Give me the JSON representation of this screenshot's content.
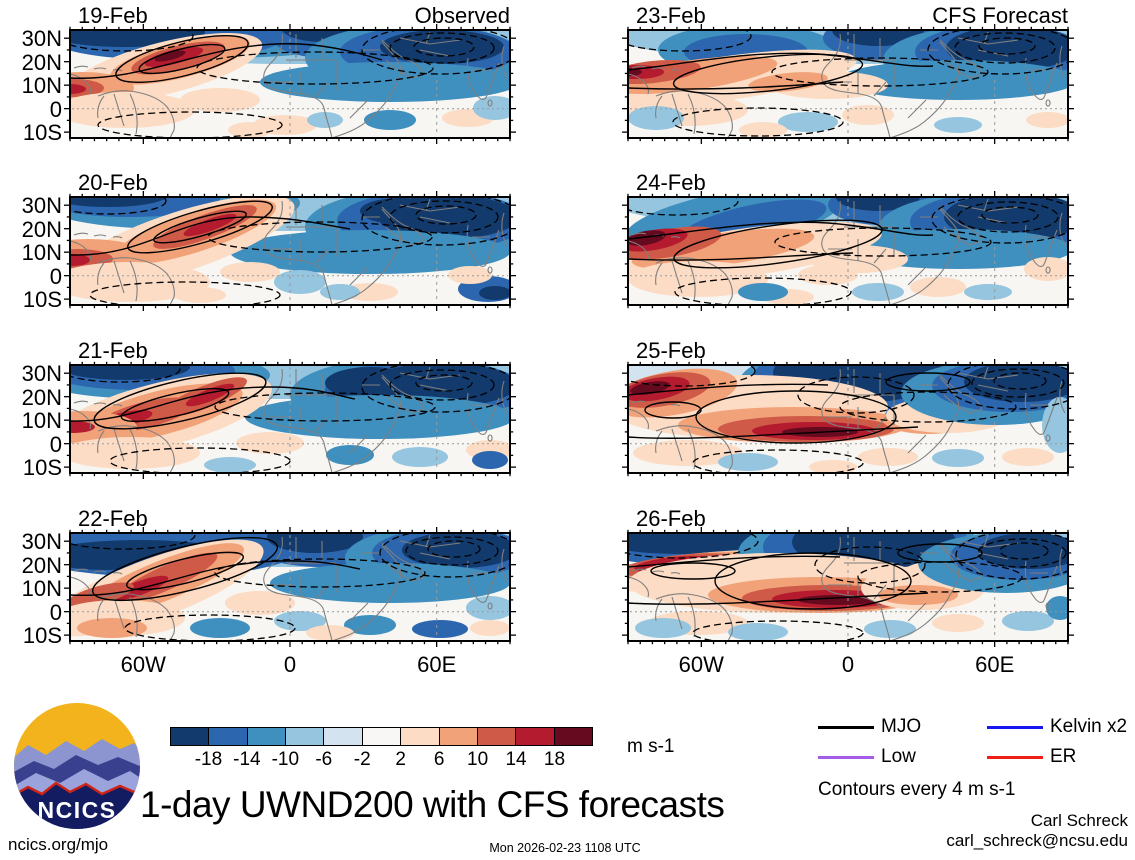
{
  "figure": {
    "title": "1-day UWND200 with CFS forecasts",
    "timestamp": "Mon 2026-02-23 1108 UTC",
    "site": "ncics.org/mjo",
    "credit_name": "Carl Schreck",
    "credit_email": "carl_schreck@ncsu.edu",
    "contour_note": "Contours every 4 m s-1",
    "units_label": "m s-1",
    "logo_text": "NCICS"
  },
  "columns": [
    {
      "header": "Observed",
      "dates": [
        "19-Feb",
        "20-Feb",
        "21-Feb",
        "22-Feb"
      ]
    },
    {
      "header": "CFS Forecast",
      "dates": [
        "23-Feb",
        "24-Feb",
        "25-Feb",
        "26-Feb"
      ]
    }
  ],
  "axes": {
    "lat_ticks": [
      "30N",
      "20N",
      "10N",
      "0",
      "10S"
    ],
    "lon_ticks": [
      "60W",
      "0",
      "60E"
    ]
  },
  "colorbar": {
    "levels": [
      "-18",
      "-14",
      "-10",
      "-6",
      "-2",
      "2",
      "6",
      "10",
      "14",
      "18"
    ],
    "colors": [
      "#123a6d",
      "#2b66ae",
      "#3f8fbf",
      "#95c5df",
      "#d3e4f0",
      "#f8f7f5",
      "#fcdcc4",
      "#f2a278",
      "#cf5a48",
      "#b51b2e",
      "#650a1f"
    ]
  },
  "legend": [
    {
      "label": "MJO",
      "color": "#000000"
    },
    {
      "label": "Kelvin x2",
      "color": "#1717ef"
    },
    {
      "label": "Low",
      "color": "#a55ce8"
    },
    {
      "label": "ER",
      "color": "#ef1f14"
    }
  ],
  "chart_data": {
    "type": "heatmap",
    "subtype": "filled-contour longitude-latitude anomaly maps, 2 columns x 4 rows",
    "variable": "200-hPa zonal wind anomaly (UWND200)",
    "units": "m s-1",
    "x_axis": {
      "tick_labels": [
        "60W",
        "0",
        "60E"
      ],
      "range_deg_lon": [
        -90,
        90
      ]
    },
    "y_axis": {
      "tick_labels": [
        "30N",
        "20N",
        "10N",
        "0",
        "10S"
      ],
      "range_deg_lat": [
        -12,
        33
      ]
    },
    "shading_boundaries": [
      -18,
      -14,
      -10,
      -6,
      -2,
      2,
      6,
      10,
      14,
      18
    ],
    "contour_interval_note": "Contours every 4 m s-1",
    "overlay_contours": [
      "MJO",
      "Kelvin x2",
      "Low",
      "ER"
    ],
    "panels": [
      {
        "date": "19-Feb",
        "column": "Observed",
        "summary": "Easterly (blue) band 25-35N across Atlantic, Africa, south Asia; intense westerly (dark red) core near 20N 50W; red band ~10N at far west; MJO solid contour loop around the red core; dashed contours over south-Asian blue maximum."
      },
      {
        "date": "20-Feb",
        "column": "Observed",
        "summary": "Northern blue band persists; red core weakens, tilts SW over tropical Atlantic; far-west red band 0-15N; deep blue over Arabia/India."
      },
      {
        "date": "21-Feb",
        "column": "Observed",
        "summary": "Broad red region lower-left (90W-30W, 0-20N) with two cores; blue band top-left; very dark blue mass 15-33N from 0E to 90E."
      },
      {
        "date": "22-Feb",
        "column": "Observed",
        "summary": "Deep blue 20-25N over west Atlantic; red band tilted from 90W/5N to 40W/25N; dark blue blobs center-top and over Arabia/India; scattered red south-west."
      },
      {
        "date": "23-Feb",
        "column": "CFS Forecast",
        "summary": "Red band ~10-15N across the west with dark core at far west; blue trough mid-Atlantic; dark blue center-top and over south Asia; solid MJO contours sweep the Atlantic."
      },
      {
        "date": "24-Feb",
        "column": "CFS Forecast",
        "summary": "Intense dark-red maximum near 15N 80W; red band along 5-10N east to Africa; blue diagonal band mid-Atlantic; very dark blue over south Asia."
      },
      {
        "date": "25-Feb",
        "column": "CFS Forecast",
        "summary": "Dark red core far west ~20N; strong dark-red band along 0-8N from 60W to 10E; deep blue wedge north-center and large blue maximum over Tibet/east Asia."
      },
      {
        "date": "26-Feb",
        "column": "CFS Forecast",
        "summary": "Dark navy band northwest; red band ~18N far west; intense dark-red band 2-8N from 40W to 10E; deep blue center-north; blue maximum top-right with dashed contours."
      }
    ]
  }
}
